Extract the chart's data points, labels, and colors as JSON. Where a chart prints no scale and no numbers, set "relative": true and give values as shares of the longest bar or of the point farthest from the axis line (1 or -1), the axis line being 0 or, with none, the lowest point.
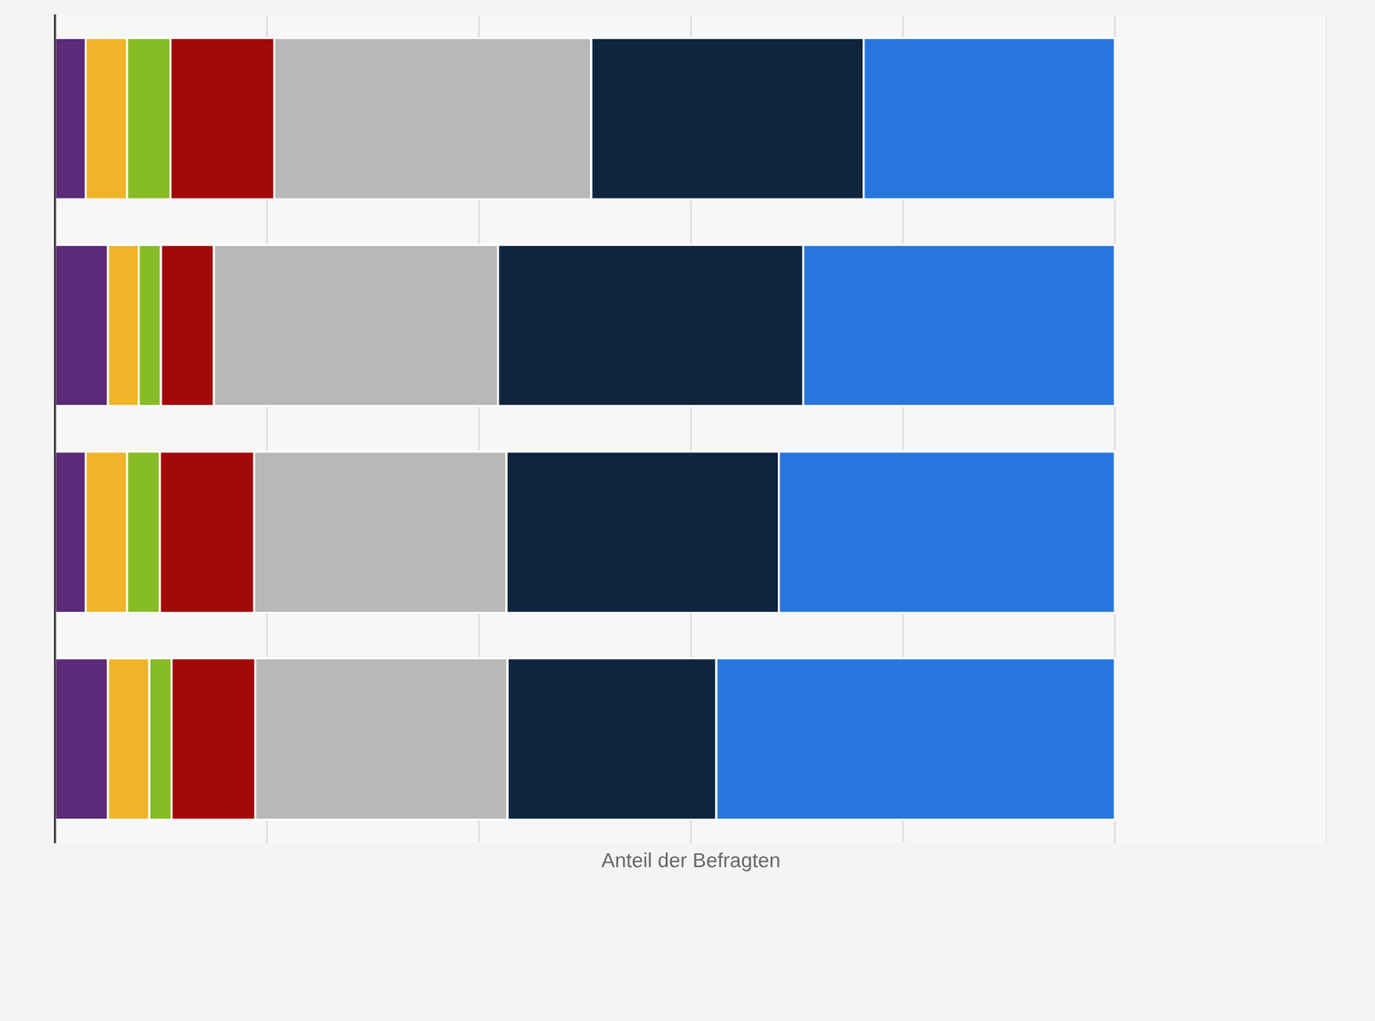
{
  "chart_data": {
    "type": "bar",
    "orientation": "horizontal",
    "stacked": true,
    "relative": true,
    "xlabel": "Anteil der Befragten",
    "grid": "x",
    "legend": false,
    "categories": [
      null,
      null,
      null,
      null
    ],
    "series": [
      {
        "color": "#5b2a79",
        "values": [
          0.029,
          0.05,
          0.029,
          0.05
        ]
      },
      {
        "color": "#f0b429",
        "values": [
          0.039,
          0.029,
          0.039,
          0.039
        ]
      },
      {
        "color": "#86bc25",
        "values": [
          0.041,
          0.021,
          0.031,
          0.021
        ]
      },
      {
        "color": "#a20a0a",
        "values": [
          0.098,
          0.05,
          0.089,
          0.079
        ]
      },
      {
        "color": "#b8b8b8",
        "values": [
          0.299,
          0.268,
          0.238,
          0.238
        ]
      },
      {
        "color": "#0f253e",
        "values": [
          0.257,
          0.288,
          0.257,
          0.197
        ]
      },
      {
        "color": "#2876dd",
        "values": [
          0.237,
          0.294,
          0.317,
          0.376
        ]
      }
    ]
  }
}
